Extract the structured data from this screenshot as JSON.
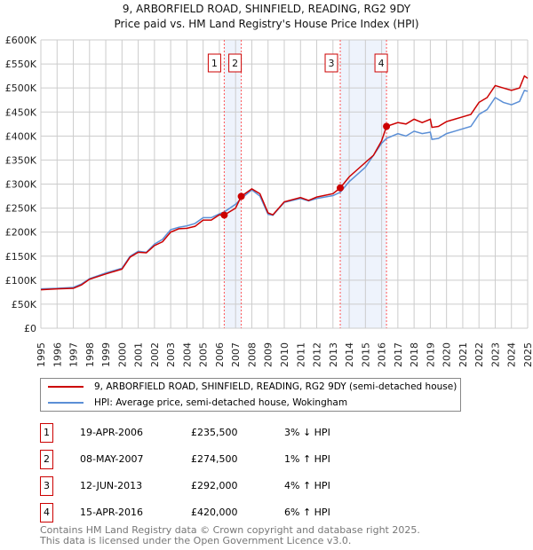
{
  "chart_data": {
    "type": "line",
    "title": "9, ARBORFIELD ROAD, SHINFIELD, READING, RG2 9DY",
    "subtitle": "Price paid vs. HM Land Registry's House Price Index (HPI)",
    "ylim": [
      0,
      600000
    ],
    "xlim": [
      1995,
      2025
    ],
    "yticks": [
      "£0",
      "£50K",
      "£100K",
      "£150K",
      "£200K",
      "£250K",
      "£300K",
      "£350K",
      "£400K",
      "£450K",
      "£500K",
      "£550K",
      "£600K"
    ],
    "xticks": [
      "1995",
      "1996",
      "1997",
      "1998",
      "1999",
      "2000",
      "2001",
      "2002",
      "2003",
      "2004",
      "2005",
      "2006",
      "2007",
      "2008",
      "2009",
      "2010",
      "2011",
      "2012",
      "2013",
      "2014",
      "2015",
      "2016",
      "2017",
      "2018",
      "2019",
      "2020",
      "2021",
      "2022",
      "2023",
      "2024",
      "2025"
    ],
    "series": [
      {
        "name": "9, ARBORFIELD ROAD, SHINFIELD, READING, RG2 9DY (semi-detached house)",
        "color": "#cc0000",
        "x": [
          1995,
          1996,
          1997,
          1997.5,
          1998,
          1999,
          2000,
          2000.5,
          2001,
          2001.5,
          2002,
          2002.5,
          2003,
          2003.5,
          2004,
          2004.5,
          2005,
          2005.5,
          2006,
          2006.3,
          2007,
          2007.35,
          2008,
          2008.5,
          2009,
          2009.3,
          2010,
          2011,
          2011.5,
          2012,
          2013,
          2013.45,
          2014,
          2015,
          2015.5,
          2016,
          2016.3,
          2017,
          2017.5,
          2018,
          2018.5,
          2019,
          2019.1,
          2019.5,
          2020,
          2020.5,
          2021,
          2021.5,
          2022,
          2022.5,
          2023,
          2023.5,
          2024,
          2024.5,
          2024.8,
          2025
        ],
        "values": [
          80000,
          82000,
          83000,
          90000,
          102000,
          113000,
          123000,
          148000,
          158000,
          157000,
          172000,
          180000,
          200000,
          207000,
          208000,
          212000,
          225000,
          225000,
          236000,
          235500,
          250000,
          274500,
          290000,
          280000,
          240000,
          236000,
          263000,
          272000,
          266000,
          273000,
          280000,
          292000,
          315000,
          345000,
          360000,
          390000,
          420000,
          428000,
          425000,
          435000,
          428000,
          435000,
          418000,
          420000,
          430000,
          435000,
          440000,
          445000,
          470000,
          480000,
          505000,
          500000,
          495000,
          500000,
          525000,
          520000
        ]
      },
      {
        "name": "HPI: Average price, semi-detached house, Wokingham",
        "color": "#5b8fd6",
        "x": [
          1995,
          1996,
          1997,
          1997.5,
          1998,
          1999,
          2000,
          2000.5,
          2001,
          2001.5,
          2002,
          2002.5,
          2003,
          2003.5,
          2004,
          2004.5,
          2005,
          2005.5,
          2006,
          2006.3,
          2007,
          2007.35,
          2008,
          2008.5,
          2009,
          2009.3,
          2010,
          2011,
          2011.5,
          2012,
          2013,
          2013.45,
          2014,
          2015,
          2015.5,
          2016,
          2016.3,
          2017,
          2017.5,
          2018,
          2018.5,
          2019,
          2019.1,
          2019.5,
          2020,
          2020.5,
          2021,
          2021.5,
          2022,
          2022.5,
          2023,
          2023.5,
          2024,
          2024.5,
          2024.8,
          2025
        ],
        "values": [
          82000,
          83000,
          85000,
          92000,
          103000,
          115000,
          125000,
          150000,
          160000,
          158000,
          175000,
          185000,
          205000,
          210000,
          213000,
          218000,
          230000,
          230000,
          238000,
          242000,
          258000,
          270000,
          288000,
          275000,
          237000,
          235000,
          262000,
          270000,
          265000,
          270000,
          276000,
          283000,
          305000,
          335000,
          360000,
          385000,
          395000,
          405000,
          400000,
          410000,
          405000,
          408000,
          393000,
          395000,
          405000,
          410000,
          415000,
          420000,
          445000,
          455000,
          480000,
          470000,
          465000,
          472000,
          495000,
          493000
        ]
      }
    ],
    "sales": [
      {
        "label": "1",
        "date": "19-APR-2006",
        "x": 2006.3,
        "price": "£235,500",
        "value": 235500,
        "hpi": "3% ↓ HPI"
      },
      {
        "label": "2",
        "date": "08-MAY-2007",
        "x": 2007.35,
        "price": "£274,500",
        "value": 274500,
        "hpi": "1% ↑ HPI"
      },
      {
        "label": "3",
        "date": "12-JUN-2013",
        "x": 2013.45,
        "price": "£292,000",
        "value": 292000,
        "hpi": "4% ↑ HPI"
      },
      {
        "label": "4",
        "date": "15-APR-2016",
        "x": 2016.3,
        "price": "£420,000",
        "value": 420000,
        "hpi": "6% ↑ HPI"
      }
    ]
  },
  "footer": {
    "line1": "Contains HM Land Registry data © Crown copyright and database right 2025.",
    "line2": "This data is licensed under the Open Government Licence v3.0."
  }
}
